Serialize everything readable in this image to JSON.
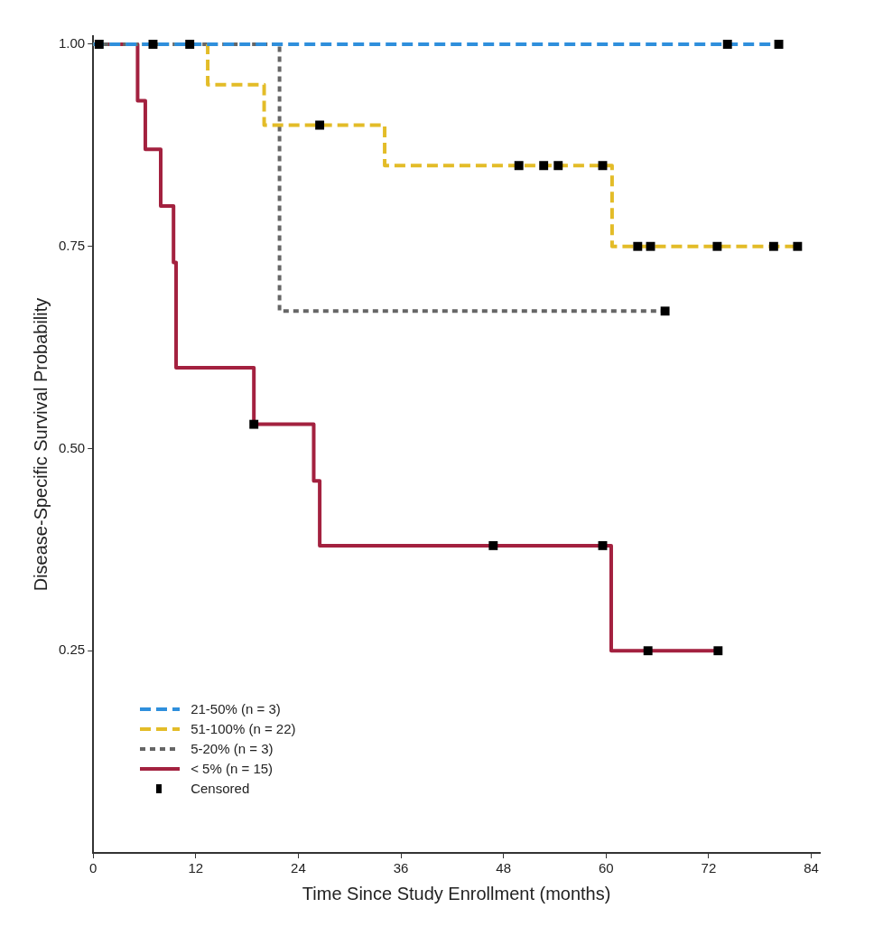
{
  "chart_data": {
    "type": "step",
    "xlabel": "Time Since Study Enrollment (months)",
    "ylabel": "Disease-Specific Survival Probability",
    "xlim": [
      0,
      85
    ],
    "xticks": [
      0,
      12,
      24,
      36,
      48,
      60,
      72,
      84
    ],
    "ylim": [
      0,
      1.01
    ],
    "yticks": [
      {
        "value": 0.25,
        "label": "0.25"
      },
      {
        "value": 0.5,
        "label": "0.50"
      },
      {
        "value": 0.75,
        "label": "0.75"
      },
      {
        "value": 1,
        "label": "1.00"
      }
    ],
    "legend": "bottom left",
    "grid": false,
    "series": [
      {
        "name": "21-50% (n = 3)",
        "color": "#2f8fdc",
        "line_style": "dashed",
        "marker": "none",
        "x": [
          0,
          80.2
        ],
        "values": [
          1,
          1
        ]
      },
      {
        "name": "51-100% (n = 22)",
        "color": "#e3bc28",
        "line_style": "dashed",
        "marker": "none",
        "x": [
          0,
          13.4,
          20,
          34.1,
          60.7,
          82.4
        ],
        "values": [
          1,
          0.95,
          0.9,
          0.85,
          0.75,
          0.75
        ]
      },
      {
        "name": "5-20% (n = 3)",
        "color": "#666666",
        "line_style": "dotted",
        "marker": "none",
        "x": [
          0,
          21.8,
          66.9
        ],
        "values": [
          1,
          0.67,
          0.67
        ]
      },
      {
        "name": "< 5% (n = 15)",
        "color": "#a3213f",
        "line_style": "solid",
        "marker": "none",
        "x": [
          0,
          5.2,
          6.1,
          7.9,
          9.4,
          9.7,
          18.8,
          25.8,
          26.5,
          60.6,
          73.1
        ],
        "values": [
          1,
          0.93,
          0.87,
          0.8,
          0.73,
          0.6,
          0.53,
          0.46,
          0.38,
          0.25,
          0.25
        ]
      },
      {
        "name": "Censored",
        "type": "scatter",
        "color": "#000000",
        "marker": "square",
        "x": [
          0.7,
          7,
          11.3,
          74.2,
          80.2,
          26.5,
          49.8,
          52.7,
          54.4,
          59.6,
          63.7,
          65.2,
          73,
          79.6,
          82.4,
          66.9,
          18.8,
          46.8,
          59.6,
          64.9,
          73.1
        ],
        "values": [
          1,
          1,
          1,
          1,
          1,
          0.9,
          0.85,
          0.85,
          0.85,
          0.85,
          0.75,
          0.75,
          0.75,
          0.75,
          0.75,
          0.67,
          0.53,
          0.38,
          0.38,
          0.25,
          0.25
        ]
      }
    ]
  }
}
